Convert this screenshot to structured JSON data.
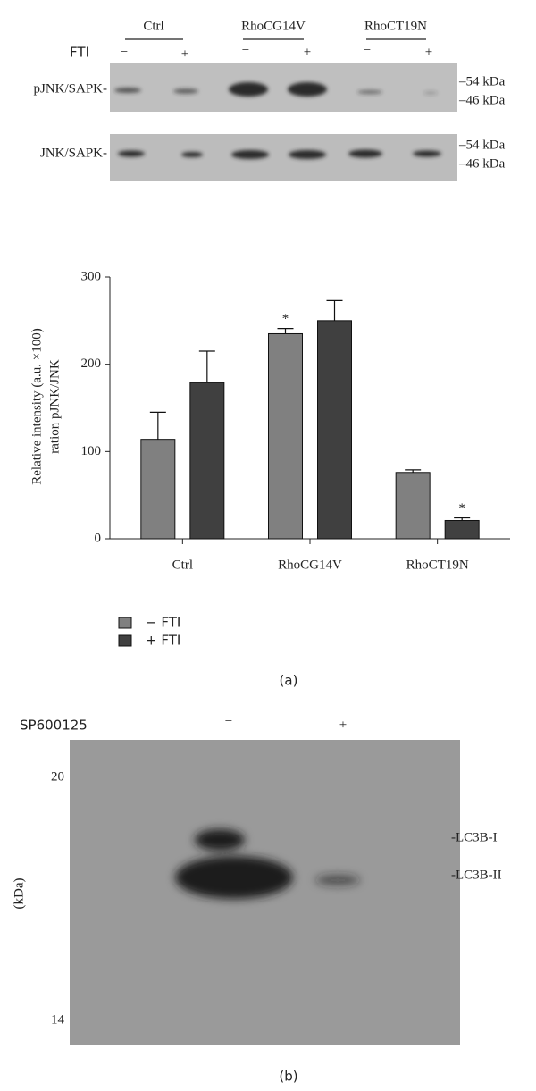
{
  "blot_a": {
    "groups": [
      "Ctrl",
      "RhoCG14V",
      "RhoCT19N"
    ],
    "treatment": "FTI",
    "signs": [
      "−",
      "+",
      "−",
      "+",
      "−",
      "+"
    ],
    "rows": [
      {
        "label": "pJNK/SAPK-",
        "markers": [
          "–54 kDa",
          "–46 kDa"
        ]
      },
      {
        "label": "JNK/SAPK-",
        "markers": [
          "–54 kDa",
          "–46 kDa"
        ]
      }
    ]
  },
  "chart_data": {
    "type": "bar",
    "ylabel": [
      "Relative intensity (a.u. ×100)",
      "ration pJNK/JNK"
    ],
    "categories": [
      "Ctrl",
      "RhoCG14V",
      "RhoCT19N"
    ],
    "series": [
      {
        "name": "− FTI",
        "color": "#808080",
        "values": [
          114,
          235,
          76
        ],
        "errors": [
          31,
          6,
          3
        ],
        "significance": [
          null,
          "*",
          null
        ]
      },
      {
        "name": "+ FTI",
        "color": "#404040",
        "values": [
          179,
          250,
          21
        ],
        "errors": [
          36,
          23,
          3
        ],
        "significance": [
          null,
          null,
          "*"
        ]
      }
    ],
    "ylim": [
      0,
      300
    ],
    "yticks": [
      0,
      100,
      200,
      300
    ]
  },
  "panel_a": "(a)",
  "blot_b": {
    "treatment": "SP600125",
    "signs": [
      "−",
      "+"
    ],
    "mw_top": "20",
    "mw_bottom": "14",
    "unit": "(kDa)",
    "bands": [
      "-LC3B-I",
      "-LC3B-II"
    ]
  },
  "panel_b": "(b)"
}
